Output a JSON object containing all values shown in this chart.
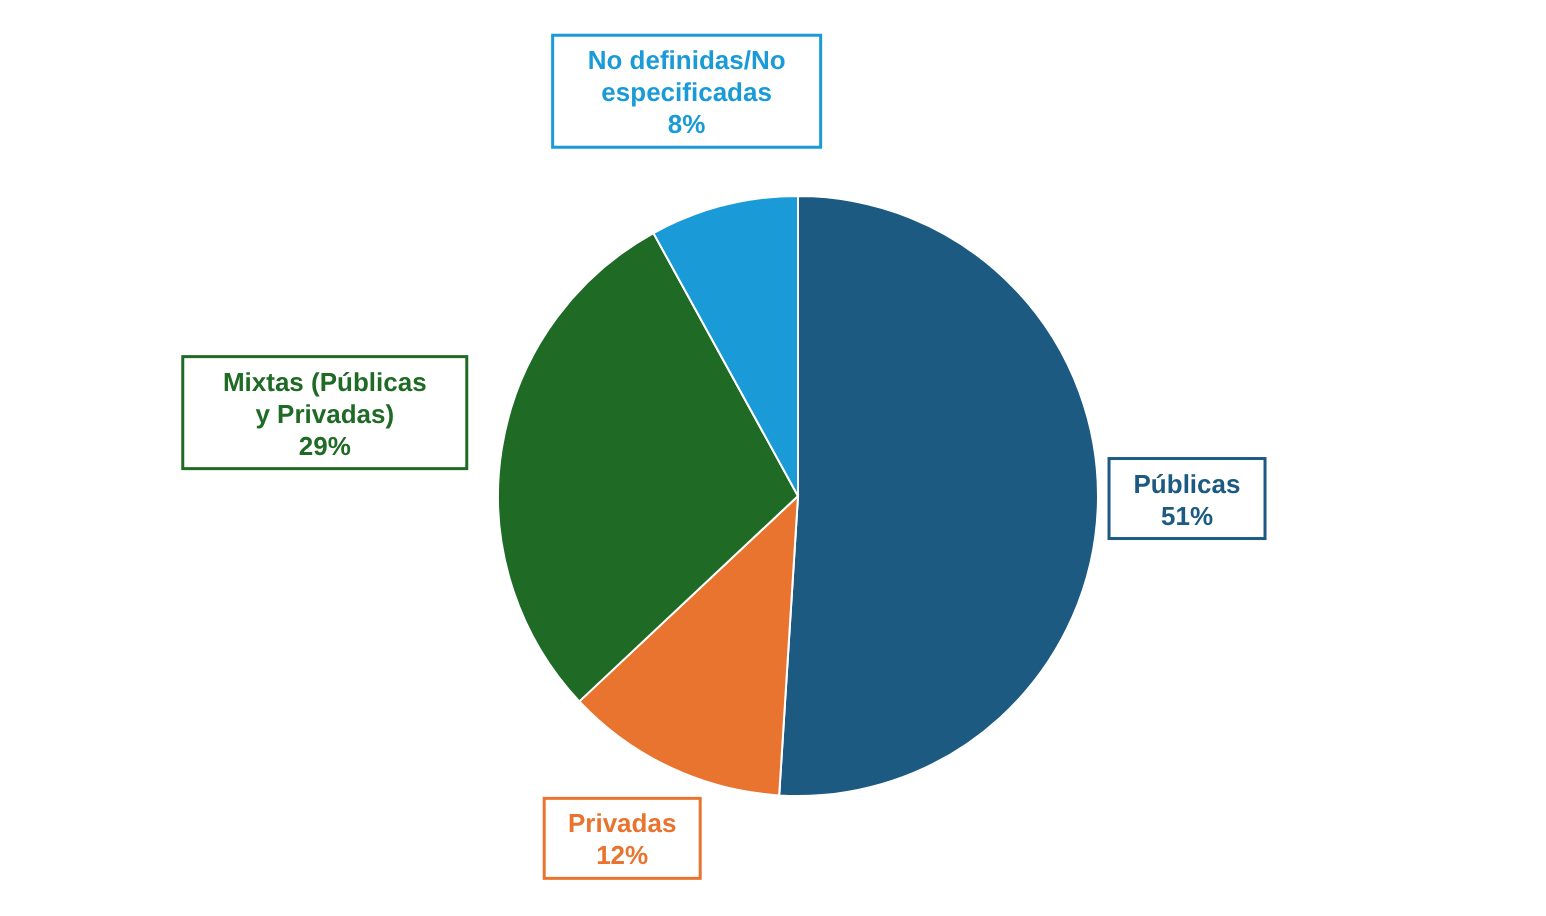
{
  "chart_data": {
    "type": "pie",
    "categories": [
      "Públicas",
      "Privadas",
      "Mixtas (Públicas y Privadas)",
      "No definidas/No especificadas"
    ],
    "values": [
      51,
      12,
      29,
      8
    ],
    "value_labels": [
      "51%",
      "12%",
      "29%",
      "8%"
    ],
    "colors": [
      "#1d5a82",
      "#e8742f",
      "#1f6b26",
      "#1a9bd7"
    ],
    "legend": false
  }
}
